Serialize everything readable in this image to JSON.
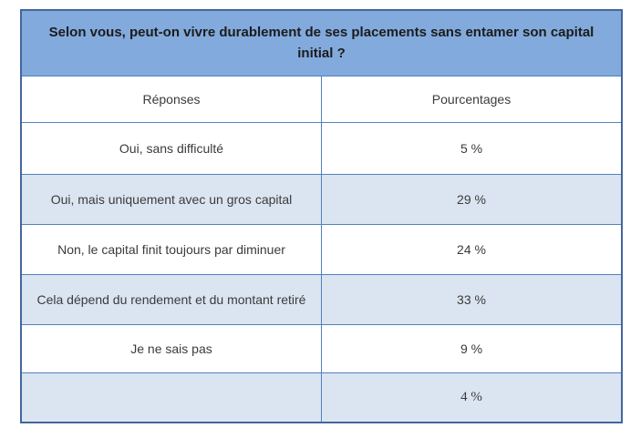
{
  "table": {
    "title": "Selon vous, peut-on vivre durablement de ses placements sans entamer son capital initial ?",
    "columns": {
      "responses": "Réponses",
      "percentages": "Pourcentages"
    },
    "rows": [
      {
        "label": "Oui, sans difficulté",
        "value": "5 %"
      },
      {
        "label": "Oui, mais uniquement avec un gros capital",
        "value": "29 %"
      },
      {
        "label": "Non, le capital finit toujours par diminuer",
        "value": "24 %"
      },
      {
        "label": "Cela dépend du rendement et du montant retiré",
        "value": "33 %"
      },
      {
        "label": "Je ne sais pas",
        "value": "9 %"
      },
      {
        "label": "",
        "value": "4 %"
      }
    ],
    "colors": {
      "title_bg": "#82aadd",
      "alt_row_bg": "#dbe5f1",
      "border": "#4f81bd",
      "outer_border": "#44659e"
    }
  },
  "chart_data": {
    "type": "table",
    "title": "Selon vous, peut-on vivre durablement de ses placements sans entamer son capital initial ?",
    "columns": [
      "Réponses",
      "Pourcentages"
    ],
    "categories": [
      "Oui, sans difficulté",
      "Oui, mais uniquement avec un gros capital",
      "Non, le capital finit toujours par diminuer",
      "Cela dépend du rendement et du montant retiré",
      "Je ne sais pas",
      ""
    ],
    "values": [
      5,
      29,
      24,
      33,
      9,
      4
    ],
    "value_unit": "%"
  }
}
